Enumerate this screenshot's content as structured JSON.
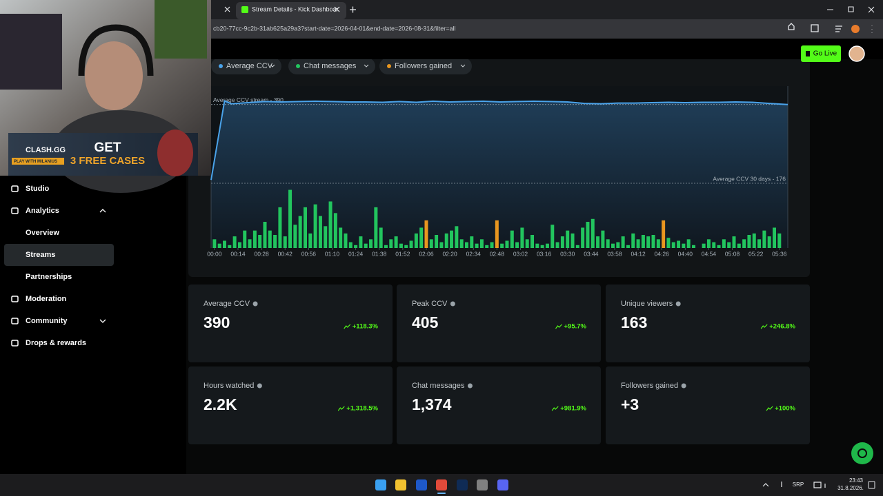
{
  "browser": {
    "tab_title": "Stream Details - Kick Dashboar",
    "url": "cb20-77cc-9c2b-31ab625a29a3?start-date=2026-04-01&end-date=2026-08-31&filter=all"
  },
  "webcam_ad": {
    "brand": "CLASH.GG",
    "tagline": "PLAY WITH MILANIUS",
    "headline": "GET",
    "offer": "3 FREE CASES"
  },
  "header": {
    "go_live": "Go Live"
  },
  "sidebar": {
    "items": [
      {
        "label": "Studio",
        "level": 1
      },
      {
        "label": "Analytics",
        "level": 1
      },
      {
        "label": "Overview",
        "level": 2
      },
      {
        "label": "Streams",
        "level": 2,
        "active": true
      },
      {
        "label": "Partnerships",
        "level": 2
      },
      {
        "label": "Moderation",
        "level": 1
      },
      {
        "label": "Community",
        "level": 1
      },
      {
        "label": "Drops & rewards",
        "level": 1
      }
    ]
  },
  "chart_data": {
    "type": "combo",
    "series": [
      {
        "name": "Average CCV",
        "color": "#4aa3ea",
        "x": [
          -2,
          6,
          10,
          20,
          30,
          40,
          50,
          60,
          70,
          80,
          90,
          100,
          110,
          120,
          130,
          140,
          150,
          160,
          170,
          180,
          190,
          200,
          210,
          220,
          230,
          240,
          250,
          260,
          270,
          280,
          290,
          300,
          310,
          320,
          330,
          341
        ],
        "values": [
          185,
          400,
          392,
          395,
          398,
          397,
          398,
          399,
          398,
          397,
          397,
          396,
          398,
          396,
          399,
          397,
          398,
          399,
          397,
          398,
          399,
          398,
          397,
          393,
          392,
          394,
          394,
          395,
          396,
          395,
          396,
          396,
          397,
          396,
          393,
          390
        ]
      },
      {
        "name": "Chat messages",
        "color": "#22c55e",
        "axis": "y2",
        "x": [
          0,
          3,
          6,
          9,
          12,
          15,
          18,
          21,
          24,
          27,
          30,
          33,
          36,
          39,
          42,
          45,
          48,
          51,
          54,
          57,
          60,
          63,
          66,
          69,
          72,
          75,
          78,
          81,
          84,
          87,
          90,
          93,
          96,
          99,
          102,
          105,
          108,
          111,
          114,
          117,
          120,
          123,
          126,
          129,
          132,
          135,
          138,
          141,
          144,
          147,
          150,
          153,
          156,
          159,
          162,
          165,
          168,
          171,
          174,
          177,
          180,
          183,
          186,
          189,
          192,
          195,
          198,
          201,
          204,
          207,
          210,
          213,
          216,
          219,
          222,
          225,
          228,
          231,
          234,
          237,
          240,
          243,
          246,
          249,
          252,
          255,
          258,
          261,
          264,
          267,
          270,
          273,
          276,
          279,
          282,
          285,
          288,
          291,
          294,
          297,
          300,
          303,
          306,
          309,
          312,
          315,
          318,
          321,
          324,
          327,
          330,
          333,
          336
        ],
        "values": [
          6,
          3,
          5,
          2,
          8,
          4,
          12,
          6,
          12,
          9,
          18,
          12,
          9,
          28,
          8,
          40,
          16,
          22,
          28,
          10,
          30,
          22,
          15,
          32,
          24,
          14,
          10,
          4,
          2,
          8,
          3,
          6,
          28,
          14,
          2,
          6,
          8,
          3,
          2,
          5,
          10,
          14,
          null,
          6,
          9,
          4,
          10,
          12,
          15,
          6,
          4,
          8,
          3,
          6,
          2,
          4,
          null,
          3,
          5,
          12,
          4,
          14,
          6,
          9,
          3,
          2,
          3,
          16,
          4,
          8,
          12,
          10,
          2,
          14,
          18,
          20,
          8,
          12,
          6,
          3,
          4,
          8,
          2,
          10,
          6,
          9,
          8,
          9,
          6,
          null,
          7,
          4,
          5,
          3,
          6,
          2,
          0,
          3,
          6,
          4,
          2,
          6,
          4,
          8,
          3,
          6,
          9,
          10,
          6,
          12,
          8,
          14,
          10
        ]
      },
      {
        "name": "Followers gained",
        "color": "#e8961f",
        "axis": "y2",
        "x": [
          126,
          168,
          267
        ],
        "values": [
          19,
          19,
          19
        ]
      }
    ],
    "xlim": [
      -2,
      341
    ],
    "xticks": [
      {
        "value": 0,
        "label": "00:00"
      },
      {
        "value": 14,
        "label": "00:14"
      },
      {
        "value": 28,
        "label": "00:28"
      },
      {
        "value": 42,
        "label": "00:42"
      },
      {
        "value": 56,
        "label": "00:56"
      },
      {
        "value": 70,
        "label": "01:10"
      },
      {
        "value": 84,
        "label": "01:24"
      },
      {
        "value": 98,
        "label": "01:38"
      },
      {
        "value": 112,
        "label": "01:52"
      },
      {
        "value": 126,
        "label": "02:06"
      },
      {
        "value": 140,
        "label": "02:20"
      },
      {
        "value": 154,
        "label": "02:34"
      },
      {
        "value": 168,
        "label": "02:48"
      },
      {
        "value": 182,
        "label": "03:02"
      },
      {
        "value": 196,
        "label": "03:16"
      },
      {
        "value": 210,
        "label": "03:30"
      },
      {
        "value": 224,
        "label": "03:44"
      },
      {
        "value": 238,
        "label": "03:58"
      },
      {
        "value": 252,
        "label": "04:12"
      },
      {
        "value": 266,
        "label": "04:26"
      },
      {
        "value": 280,
        "label": "04:40"
      },
      {
        "value": 294,
        "label": "04:54"
      },
      {
        "value": 308,
        "label": "05:08"
      },
      {
        "value": 322,
        "label": "05:22"
      },
      {
        "value": 336,
        "label": "05:36"
      }
    ],
    "ylim": [
      0,
      440
    ],
    "y2lim": [
      0,
      45
    ],
    "reference_lines": [
      {
        "value": 390,
        "label": "Average CCV stream - 390",
        "align": "left"
      },
      {
        "value": 176,
        "label": "Average CCV 30 days - 176",
        "align": "right"
      }
    ]
  },
  "stats": [
    {
      "label": "Average CCV",
      "value": "390",
      "change": "+118.3%"
    },
    {
      "label": "Peak CCV",
      "value": "405",
      "change": "+95.7%"
    },
    {
      "label": "Unique viewers",
      "value": "163",
      "change": "+246.8%"
    },
    {
      "label": "Hours watched",
      "value": "2.2K",
      "change": "+1,318.5%"
    },
    {
      "label": "Chat messages",
      "value": "1,374",
      "change": "+981.9%"
    },
    {
      "label": "Followers gained",
      "value": "+3",
      "change": "+100%"
    }
  ],
  "taskbar": {
    "language": "SRP",
    "time": "23:43",
    "date": "31.8.2026."
  }
}
